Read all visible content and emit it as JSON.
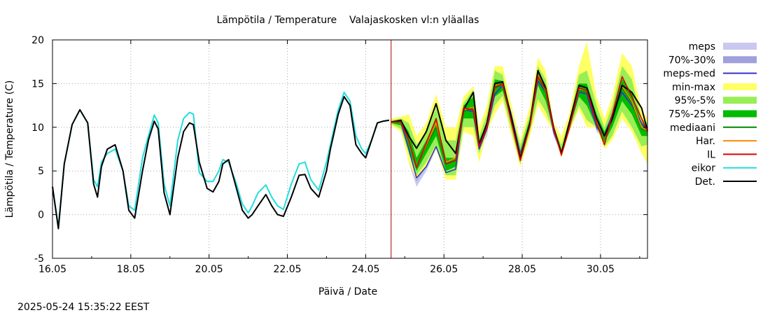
{
  "chart_data": {
    "type": "line",
    "title": "Lämpötila / Temperature    Valajaskosken vl:n yläallas",
    "xlabel": "Päivä / Date",
    "ylabel": "Lämpötila / Temperature (C)",
    "timestamp": "2025-05-24 15:35:22 EEST",
    "xlim": [
      0,
      15.2
    ],
    "ylim": [
      -5,
      20
    ],
    "xtick_values": [
      0,
      2,
      4,
      6,
      8,
      10,
      12,
      14
    ],
    "xticks": [
      "16.05",
      "18.05",
      "20.05",
      "22.05",
      "24.05",
      "26.05",
      "28.05",
      "30.05"
    ],
    "yticks": [
      -5,
      0,
      5,
      10,
      15,
      20
    ],
    "grid": true,
    "legend_position": "right",
    "forecast_start": 8.65,
    "colors": {
      "meps": "#c8c8f0",
      "p70_30": "#a0a0dc",
      "meps_med": "#3333cc",
      "minmax": "#ffff66",
      "p95_5": "#99ee55",
      "p75_25": "#00bb00",
      "mediaani": "#008800",
      "har": "#ff8800",
      "il": "#dd0000",
      "eikor": "#22dddd",
      "det": "#000000",
      "vline": "#aa0000",
      "grid": "#aaaaaa"
    },
    "legend": [
      {
        "label": "meps",
        "key": "meps",
        "style": "band"
      },
      {
        "label": "70%-30%",
        "key": "p70_30",
        "style": "band"
      },
      {
        "label": "meps-med",
        "key": "meps_med",
        "style": "line"
      },
      {
        "label": "min-max",
        "key": "minmax",
        "style": "band"
      },
      {
        "label": "95%-5%",
        "key": "p95_5",
        "style": "band"
      },
      {
        "label": "75%-25%",
        "key": "p75_25",
        "style": "band"
      },
      {
        "label": "mediaani",
        "key": "mediaani",
        "style": "line"
      },
      {
        "label": "Har.",
        "key": "har",
        "style": "line"
      },
      {
        "label": "IL",
        "key": "il",
        "style": "line"
      },
      {
        "label": "eikor",
        "key": "eikor",
        "style": "line"
      },
      {
        "label": "Det.",
        "key": "det",
        "style": "line"
      }
    ],
    "det_history": {
      "x": [
        0.0,
        0.15,
        0.3,
        0.5,
        0.7,
        0.9,
        1.05,
        1.15,
        1.25,
        1.4,
        1.6,
        1.8,
        1.95,
        2.1,
        2.3,
        2.45,
        2.6,
        2.7,
        2.85,
        3.0,
        3.2,
        3.35,
        3.5,
        3.6,
        3.75,
        3.95,
        4.1,
        4.25,
        4.35,
        4.5,
        4.7,
        4.85,
        5.0,
        5.1,
        5.25,
        5.45,
        5.6,
        5.75,
        5.9,
        6.1,
        6.3,
        6.45,
        6.6,
        6.8,
        7.0,
        7.1,
        7.3,
        7.45,
        7.6,
        7.75,
        7.9,
        8.0,
        8.15,
        8.3,
        8.45,
        8.6
      ],
      "y": [
        3.2,
        -1.6,
        5.8,
        10.3,
        12.0,
        10.5,
        3.5,
        2.0,
        5.5,
        7.5,
        8.0,
        5.0,
        0.5,
        -0.4,
        5.0,
        8.5,
        10.7,
        9.8,
        2.5,
        0.0,
        6.5,
        9.5,
        10.5,
        10.3,
        6.0,
        3.0,
        2.6,
        3.8,
        5.8,
        6.3,
        3.0,
        0.5,
        -0.4,
        0.0,
        1.0,
        2.3,
        1.0,
        0.0,
        -0.2,
        2.0,
        4.5,
        4.6,
        3.0,
        2.0,
        5.0,
        7.5,
        11.5,
        13.5,
        12.5,
        8.0,
        7.0,
        6.5,
        8.5,
        10.5,
        10.7,
        10.8
      ]
    },
    "eikor_history": {
      "x": [
        0.0,
        0.15,
        0.3,
        0.5,
        0.7,
        0.9,
        1.05,
        1.15,
        1.25,
        1.4,
        1.6,
        1.8,
        1.95,
        2.1,
        2.3,
        2.45,
        2.6,
        2.7,
        2.85,
        3.0,
        3.2,
        3.35,
        3.5,
        3.6,
        3.75,
        3.95,
        4.1,
        4.25,
        4.35,
        4.5,
        4.7,
        4.85,
        5.0,
        5.1,
        5.25,
        5.45,
        5.6,
        5.75,
        5.9,
        6.1,
        6.3,
        6.45,
        6.6,
        6.8,
        7.0,
        7.1,
        7.3,
        7.45,
        7.6,
        7.75,
        7.9,
        8.0,
        8.15,
        8.3,
        8.45,
        8.6
      ],
      "y": [
        3.2,
        -1.4,
        5.8,
        10.3,
        12.0,
        10.5,
        4.0,
        3.2,
        6.0,
        7.0,
        7.5,
        5.0,
        1.0,
        0.5,
        6.5,
        9.0,
        11.4,
        10.5,
        3.5,
        1.0,
        8.5,
        11.0,
        11.7,
        11.5,
        4.8,
        3.8,
        3.8,
        5.0,
        6.3,
        6.0,
        3.5,
        1.2,
        0.2,
        1.0,
        2.5,
        3.4,
        2.0,
        1.0,
        0.6,
        3.5,
        5.8,
        6.0,
        4.0,
        2.8,
        6.0,
        8.0,
        12.0,
        14.0,
        13.0,
        9.0,
        7.5,
        7.0,
        8.5,
        10.5,
        10.7,
        10.8
      ]
    },
    "fc_x": [
      8.65,
      8.9,
      9.1,
      9.3,
      9.55,
      9.8,
      10.05,
      10.3,
      10.5,
      10.75,
      10.9,
      11.1,
      11.3,
      11.5,
      11.7,
      11.95,
      12.2,
      12.4,
      12.6,
      12.8,
      13.0,
      13.2,
      13.45,
      13.65,
      13.9,
      14.1,
      14.3,
      14.55,
      14.8,
      15.05,
      15.2
    ],
    "series": [
      {
        "name": "meps",
        "key": "meps",
        "type": "band",
        "lower": [
          10.5,
          10.2,
          6.0,
          3.2,
          5.0,
          7.5,
          4.0,
          4.5,
          11.0,
          10.2,
          7.2,
          9.0,
          13.5,
          14.5,
          11.0,
          6.5,
          10.0,
          15.0,
          13.5,
          9.0,
          6.8,
          9.5,
          13.5,
          13.0,
          9.5,
          8.5,
          11.0,
          13.5,
          12.0,
          10.0,
          9.0
        ],
        "upper": [
          10.8,
          11.0,
          8.5,
          5.0,
          6.0,
          8.0,
          5.5,
          6.0,
          13.5,
          14.7,
          9.0,
          10.5,
          14.0,
          15.5,
          12.5,
          7.5,
          11.0,
          15.5,
          14.5,
          10.0,
          7.5,
          10.5,
          14.5,
          14.5,
          10.5,
          9.5,
          12.0,
          14.5,
          13.0,
          11.0,
          10.0
        ]
      },
      {
        "name": "70%-30%",
        "key": "p70_30",
        "type": "band",
        "lower": [
          10.5,
          10.3,
          6.5,
          3.8,
          5.5,
          7.5,
          4.5,
          5.0,
          11.5,
          11.0,
          7.5,
          9.5,
          13.6,
          14.6,
          11.5,
          6.8,
          10.2,
          15.1,
          13.8,
          9.2,
          7.0,
          9.8,
          13.8,
          13.3,
          9.7,
          8.8,
          11.2,
          13.8,
          12.3,
          10.2,
          9.3
        ],
        "upper": [
          10.7,
          10.8,
          8.0,
          4.8,
          5.8,
          7.8,
          5.2,
          5.5,
          12.5,
          13.0,
          8.5,
          10.2,
          13.9,
          15.3,
          12.2,
          7.2,
          10.8,
          15.4,
          14.2,
          9.8,
          7.3,
          10.2,
          14.2,
          14.2,
          10.2,
          9.3,
          11.8,
          14.2,
          12.7,
          10.8,
          9.8
        ]
      },
      {
        "name": "min-max",
        "key": "minmax",
        "type": "band",
        "lower": [
          10.2,
          9.5,
          6.0,
          4.0,
          5.5,
          7.5,
          4.0,
          4.0,
          9.5,
          9.0,
          6.0,
          9.5,
          11.5,
          13.0,
          9.5,
          5.5,
          9.0,
          12.5,
          11.0,
          9.5,
          6.5,
          9.5,
          12.0,
          10.0,
          10.0,
          7.5,
          8.5,
          11.0,
          9.5,
          7.0,
          5.8
        ],
        "upper": [
          11.0,
          11.2,
          11.5,
          9.0,
          10.5,
          13.8,
          10.0,
          10.0,
          13.5,
          14.7,
          10.0,
          12.5,
          17.0,
          17.0,
          13.0,
          8.5,
          12.5,
          18.0,
          16.5,
          10.5,
          9.0,
          11.5,
          17.0,
          19.8,
          13.5,
          11.0,
          13.5,
          18.5,
          17.0,
          12.0,
          11.0
        ]
      },
      {
        "name": "95%-5%",
        "key": "p95_5",
        "type": "band",
        "lower": [
          10.4,
          9.8,
          7.0,
          4.5,
          6.0,
          8.0,
          4.5,
          4.5,
          10.0,
          10.0,
          7.0,
          9.6,
          12.5,
          13.6,
          10.0,
          5.8,
          9.5,
          13.2,
          11.8,
          9.6,
          6.6,
          9.6,
          12.5,
          10.8,
          10.0,
          7.8,
          9.0,
          11.8,
          10.0,
          7.8,
          8.0
        ],
        "upper": [
          10.8,
          11.0,
          10.5,
          8.0,
          9.5,
          12.2,
          8.5,
          8.5,
          12.8,
          14.3,
          9.0,
          11.5,
          16.5,
          16.0,
          12.0,
          8.0,
          11.5,
          17.0,
          15.5,
          10.0,
          8.0,
          10.8,
          16.0,
          16.5,
          12.5,
          10.0,
          12.5,
          17.0,
          15.5,
          11.0,
          10.5
        ]
      },
      {
        "name": "75%-25%",
        "key": "p75_25",
        "type": "band",
        "lower": [
          10.5,
          10.2,
          7.5,
          5.0,
          7.0,
          9.0,
          5.0,
          5.5,
          11.0,
          11.0,
          7.5,
          9.8,
          13.5,
          14.2,
          11.0,
          6.2,
          10.0,
          14.8,
          13.0,
          9.8,
          6.8,
          9.8,
          13.5,
          12.5,
          10.0,
          8.3,
          10.0,
          13.0,
          11.5,
          9.0,
          9.0
        ],
        "upper": [
          10.7,
          10.8,
          9.5,
          6.5,
          8.5,
          11.0,
          6.5,
          6.5,
          12.5,
          13.5,
          8.5,
          10.5,
          15.5,
          15.3,
          11.8,
          7.3,
          11.0,
          16.5,
          14.8,
          10.0,
          7.5,
          10.2,
          15.0,
          15.0,
          11.5,
          9.5,
          11.5,
          15.5,
          14.0,
          10.5,
          10.0
        ]
      },
      {
        "name": "mediaani",
        "key": "mediaani",
        "type": "line",
        "values": [
          10.6,
          10.6,
          8.5,
          5.5,
          7.8,
          10.0,
          5.8,
          6.2,
          11.8,
          12.2,
          8.0,
          10.1,
          14.5,
          14.8,
          11.3,
          6.6,
          10.5,
          15.8,
          14.0,
          9.9,
          7.1,
          10.0,
          14.2,
          14.0,
          10.8,
          8.8,
          10.8,
          14.5,
          12.8,
          9.8,
          9.5
        ]
      },
      {
        "name": "meps-med",
        "key": "meps_med",
        "type": "line",
        "values": [
          10.6,
          10.6,
          7.5,
          4.2,
          5.5,
          7.8,
          4.8,
          5.2,
          12.0,
          11.8,
          7.5,
          9.8,
          13.8,
          14.8,
          11.8,
          7.0,
          10.5,
          15.3,
          14.0,
          9.5,
          7.1,
          10.0,
          14.0,
          13.8,
          10.0,
          9.0,
          11.5,
          14.0,
          12.5,
          10.5,
          9.5
        ]
      },
      {
        "name": "Har.",
        "key": "har",
        "type": "line",
        "values": [
          10.6,
          10.6,
          8.5,
          5.5,
          8.0,
          10.5,
          6.0,
          6.5,
          12.0,
          12.3,
          8.0,
          10.2,
          14.8,
          14.9,
          11.5,
          6.7,
          10.5,
          16.0,
          14.2,
          9.9,
          7.2,
          10.1,
          14.4,
          14.2,
          10.8,
          8.9,
          11.0,
          14.7,
          13.0,
          10.0,
          9.6
        ]
      },
      {
        "name": "IL",
        "key": "il",
        "type": "line",
        "values": [
          10.6,
          10.6,
          8.5,
          5.4,
          8.2,
          11.0,
          5.8,
          6.2,
          12.2,
          12.0,
          7.8,
          10.0,
          14.6,
          15.0,
          11.0,
          6.2,
          10.2,
          15.8,
          14.3,
          9.8,
          6.8,
          9.8,
          14.5,
          14.2,
          10.5,
          8.0,
          11.5,
          15.8,
          13.5,
          11.0,
          9.5
        ]
      },
      {
        "name": "Det.",
        "key": "det",
        "type": "line",
        "values": [
          10.6,
          10.8,
          9.0,
          7.6,
          9.5,
          12.7,
          8.5,
          7.0,
          12.0,
          14.0,
          8.0,
          10.5,
          15.0,
          15.2,
          11.5,
          6.5,
          10.5,
          16.5,
          14.5,
          10.0,
          7.0,
          10.5,
          14.8,
          14.5,
          11.0,
          9.0,
          11.0,
          14.8,
          14.0,
          12.2,
          9.6
        ]
      }
    ]
  }
}
